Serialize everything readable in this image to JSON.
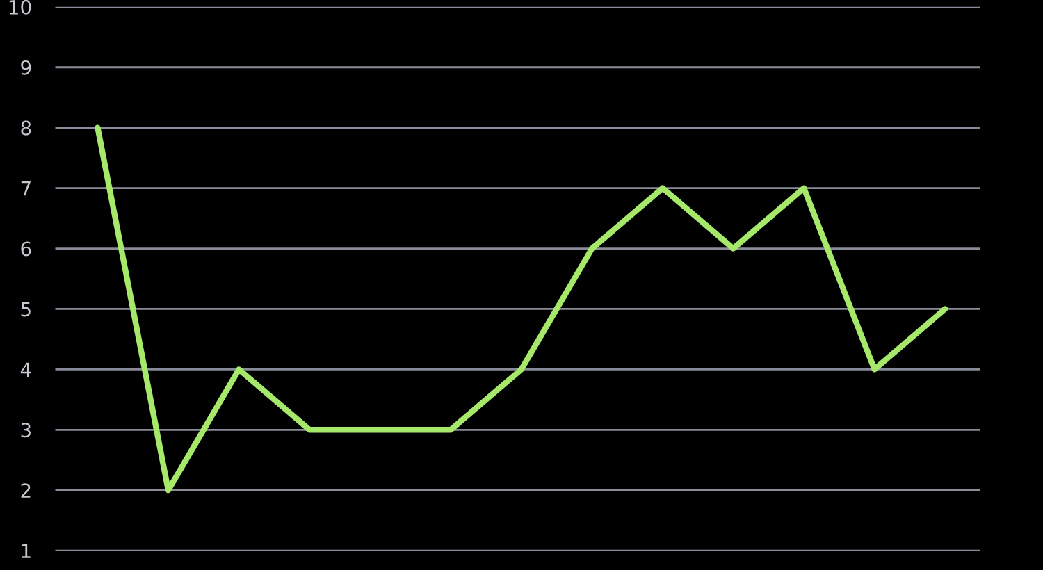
{
  "chart_data": {
    "type": "line",
    "categories": [
      null,
      null,
      null,
      null,
      null,
      null,
      null,
      null,
      null,
      null,
      null,
      null,
      null
    ],
    "series": [
      {
        "color": "#a6e86a",
        "values": [
          8,
          2,
          4,
          3,
          3,
          3,
          4,
          6,
          7,
          6,
          7,
          4,
          5
        ]
      }
    ],
    "ylim": [
      1,
      10
    ],
    "yticks": [
      1,
      2,
      3,
      4,
      5,
      6,
      7,
      8,
      9,
      10
    ],
    "grid": "y",
    "marker": "none",
    "line_style": "solid",
    "tick_labels": "y"
  }
}
